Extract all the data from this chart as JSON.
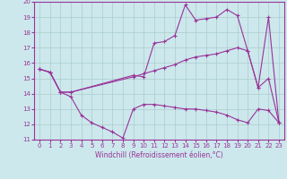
{
  "xlabel": "Windchill (Refroidissement éolien,°C)",
  "xlim": [
    -0.5,
    23.5
  ],
  "ylim": [
    11,
    20
  ],
  "xticks": [
    0,
    1,
    2,
    3,
    4,
    5,
    6,
    7,
    8,
    9,
    10,
    11,
    12,
    13,
    14,
    15,
    16,
    17,
    18,
    19,
    20,
    21,
    22,
    23
  ],
  "yticks": [
    11,
    12,
    13,
    14,
    15,
    16,
    17,
    18,
    19,
    20
  ],
  "background_color": "#cce8ec",
  "line_color": "#993399",
  "grid_color": "#aacccc",
  "line1_x": [
    0,
    1,
    2,
    3,
    4,
    5,
    6,
    7,
    8,
    9,
    10,
    11,
    12,
    13,
    14,
    15,
    16,
    17,
    18,
    19,
    20,
    21,
    22,
    23
  ],
  "line1_y": [
    15.6,
    15.4,
    14.1,
    13.8,
    12.6,
    12.1,
    11.8,
    11.5,
    11.1,
    13.0,
    13.3,
    13.3,
    13.2,
    13.1,
    13.0,
    13.0,
    12.9,
    12.8,
    12.6,
    12.3,
    12.1,
    13.0,
    12.9,
    12.1
  ],
  "line2_x": [
    0,
    1,
    2,
    3,
    9,
    10,
    11,
    12,
    13,
    14,
    15,
    16,
    17,
    18,
    19,
    20,
    21,
    22,
    23
  ],
  "line2_y": [
    15.6,
    15.4,
    14.1,
    14.1,
    15.2,
    15.1,
    17.3,
    17.4,
    17.8,
    19.8,
    18.8,
    18.9,
    19.0,
    19.5,
    19.1,
    16.8,
    14.4,
    19.0,
    12.1
  ],
  "line3_x": [
    0,
    1,
    2,
    3,
    9,
    10,
    11,
    12,
    13,
    14,
    15,
    16,
    17,
    18,
    19,
    20,
    21,
    22,
    23
  ],
  "line3_y": [
    15.6,
    15.4,
    14.1,
    14.1,
    15.1,
    15.3,
    15.5,
    15.7,
    15.9,
    16.2,
    16.4,
    16.5,
    16.6,
    16.8,
    17.0,
    16.8,
    14.4,
    15.0,
    12.1
  ]
}
